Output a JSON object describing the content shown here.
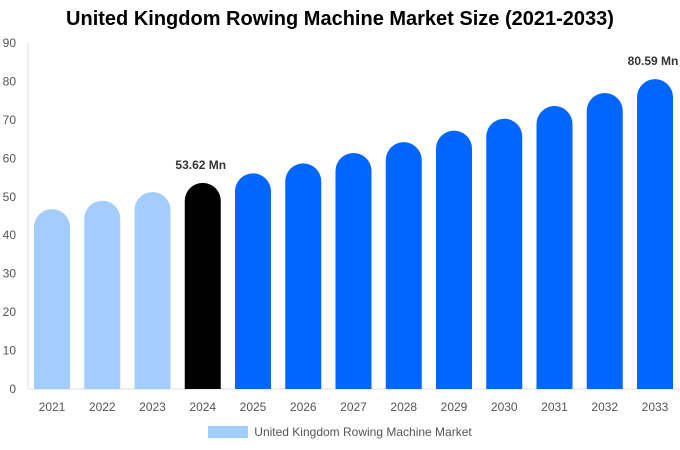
{
  "chart_data": {
    "type": "bar",
    "title": "United Kingdom Rowing Machine Market Size (2021-2033)",
    "categories": [
      "2021",
      "2022",
      "2023",
      "2024",
      "2025",
      "2026",
      "2027",
      "2028",
      "2029",
      "2030",
      "2031",
      "2032",
      "2033"
    ],
    "series": [
      {
        "name": "United Kingdom Rowing Machine Market",
        "values": [
          46.8,
          48.98,
          51.25,
          53.62,
          56.1,
          58.7,
          61.4,
          64.2,
          67.2,
          70.3,
          73.6,
          77.0,
          80.59
        ]
      }
    ],
    "data_labels": {
      "3": "53.62 Mn",
      "12": "80.59 Mn"
    },
    "bar_colors": [
      "#a3cdff",
      "#a3cdff",
      "#a3cdff",
      "#000000",
      "#0066ff",
      "#0066ff",
      "#0066ff",
      "#0066ff",
      "#0066ff",
      "#0066ff",
      "#0066ff",
      "#0066ff",
      "#0066ff"
    ],
    "ylim": [
      0,
      90
    ],
    "yticks": [
      0,
      10,
      20,
      30,
      40,
      50,
      60,
      70,
      80,
      90
    ],
    "grid": false,
    "legend_position": "bottom",
    "xlabel": "",
    "ylabel": ""
  }
}
